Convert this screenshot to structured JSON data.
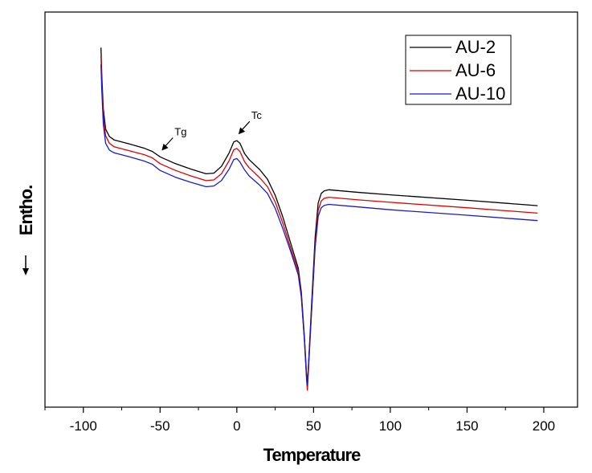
{
  "chart_data": {
    "type": "line",
    "title": "",
    "xlabel": "Temperature",
    "ylabel": "Entho.",
    "ylabel_arrow": "down-arrow",
    "xlim": [
      -125,
      222
    ],
    "ylim": [
      -10.6,
      1.05
    ],
    "x_ticks": [
      -100,
      -50,
      0,
      50,
      100,
      150,
      200
    ],
    "x_tick_labels": [
      "-100",
      "-50",
      "0",
      "50",
      "100",
      "150",
      "200"
    ],
    "y_ticks_shown": false,
    "grid": false,
    "legend_position": "top-right",
    "series": [
      {
        "name": "AU-2",
        "color": "#000000",
        "points": [
          [
            -88.5,
            0
          ],
          [
            -88,
            -0.8
          ],
          [
            -87,
            -1.8
          ],
          [
            -85.5,
            -2.4
          ],
          [
            -83,
            -2.62
          ],
          [
            -80,
            -2.72
          ],
          [
            -70,
            -2.84
          ],
          [
            -60,
            -2.97
          ],
          [
            -55,
            -3.06
          ],
          [
            -50,
            -3.22
          ],
          [
            -40,
            -3.42
          ],
          [
            -30,
            -3.58
          ],
          [
            -20,
            -3.72
          ],
          [
            -15,
            -3.7
          ],
          [
            -10,
            -3.5
          ],
          [
            -5,
            -3.1
          ],
          [
            -2,
            -2.78
          ],
          [
            0,
            -2.74
          ],
          [
            2,
            -2.82
          ],
          [
            5,
            -3.12
          ],
          [
            8,
            -3.3
          ],
          [
            15,
            -3.6
          ],
          [
            20,
            -3.88
          ],
          [
            25,
            -4.35
          ],
          [
            30,
            -5.0
          ],
          [
            35,
            -5.75
          ],
          [
            40,
            -6.5
          ],
          [
            42,
            -7.2
          ],
          [
            44,
            -8.5
          ],
          [
            45.5,
            -9.7
          ],
          [
            46,
            -9.95
          ],
          [
            47,
            -9.1
          ],
          [
            49,
            -7.3
          ],
          [
            51,
            -5.6
          ],
          [
            53,
            -4.58
          ],
          [
            55,
            -4.3
          ],
          [
            57,
            -4.22
          ],
          [
            60,
            -4.19
          ],
          [
            80,
            -4.27
          ],
          [
            100,
            -4.34
          ],
          [
            150,
            -4.5
          ],
          [
            196,
            -4.66
          ]
        ]
      },
      {
        "name": "AU-6",
        "color": "#e00000",
        "points": [
          [
            -88.5,
            -0.25
          ],
          [
            -88,
            -1.0
          ],
          [
            -87,
            -2.0
          ],
          [
            -85.5,
            -2.6
          ],
          [
            -83,
            -2.82
          ],
          [
            -80,
            -2.92
          ],
          [
            -70,
            -3.04
          ],
          [
            -60,
            -3.16
          ],
          [
            -55,
            -3.25
          ],
          [
            -50,
            -3.42
          ],
          [
            -40,
            -3.62
          ],
          [
            -30,
            -3.78
          ],
          [
            -20,
            -3.92
          ],
          [
            -15,
            -3.9
          ],
          [
            -10,
            -3.72
          ],
          [
            -5,
            -3.33
          ],
          [
            -2,
            -3.01
          ],
          [
            0,
            -2.97
          ],
          [
            2,
            -3.06
          ],
          [
            5,
            -3.36
          ],
          [
            8,
            -3.54
          ],
          [
            15,
            -3.84
          ],
          [
            20,
            -4.1
          ],
          [
            25,
            -4.55
          ],
          [
            30,
            -5.18
          ],
          [
            35,
            -5.9
          ],
          [
            40,
            -6.6
          ],
          [
            42,
            -7.3
          ],
          [
            44,
            -8.6
          ],
          [
            45.5,
            -9.85
          ],
          [
            46,
            -10.1
          ],
          [
            47,
            -9.25
          ],
          [
            49,
            -7.5
          ],
          [
            51,
            -5.8
          ],
          [
            53,
            -4.8
          ],
          [
            55,
            -4.52
          ],
          [
            57,
            -4.44
          ],
          [
            60,
            -4.41
          ],
          [
            80,
            -4.49
          ],
          [
            100,
            -4.56
          ],
          [
            150,
            -4.72
          ],
          [
            196,
            -4.88
          ]
        ]
      },
      {
        "name": "AU-10",
        "color": "#1a1acc",
        "points": [
          [
            -88.5,
            -0.5
          ],
          [
            -88,
            -1.25
          ],
          [
            -87,
            -2.25
          ],
          [
            -85.5,
            -2.82
          ],
          [
            -83,
            -3.02
          ],
          [
            -80,
            -3.1
          ],
          [
            -70,
            -3.22
          ],
          [
            -60,
            -3.35
          ],
          [
            -55,
            -3.44
          ],
          [
            -50,
            -3.62
          ],
          [
            -40,
            -3.82
          ],
          [
            -30,
            -3.97
          ],
          [
            -20,
            -4.1
          ],
          [
            -15,
            -4.08
          ],
          [
            -10,
            -3.92
          ],
          [
            -5,
            -3.58
          ],
          [
            -2,
            -3.3
          ],
          [
            0,
            -3.27
          ],
          [
            2,
            -3.37
          ],
          [
            5,
            -3.6
          ],
          [
            8,
            -3.78
          ],
          [
            15,
            -4.06
          ],
          [
            20,
            -4.3
          ],
          [
            25,
            -4.74
          ],
          [
            30,
            -5.34
          ],
          [
            35,
            -6.0
          ],
          [
            40,
            -6.7
          ],
          [
            42,
            -7.35
          ],
          [
            44,
            -8.6
          ],
          [
            45.5,
            -9.78
          ],
          [
            46,
            -9.95
          ],
          [
            47,
            -9.15
          ],
          [
            49,
            -7.5
          ],
          [
            51,
            -5.9
          ],
          [
            53,
            -4.98
          ],
          [
            55,
            -4.72
          ],
          [
            57,
            -4.65
          ],
          [
            60,
            -4.62
          ],
          [
            80,
            -4.7
          ],
          [
            100,
            -4.78
          ],
          [
            150,
            -4.94
          ],
          [
            196,
            -5.1
          ]
        ]
      }
    ],
    "annotations": [
      {
        "text": "Tg",
        "point_x": -50,
        "point_y": -3.2
      },
      {
        "text": "Tc",
        "point_x": 0,
        "point_y": -2.72
      }
    ]
  }
}
